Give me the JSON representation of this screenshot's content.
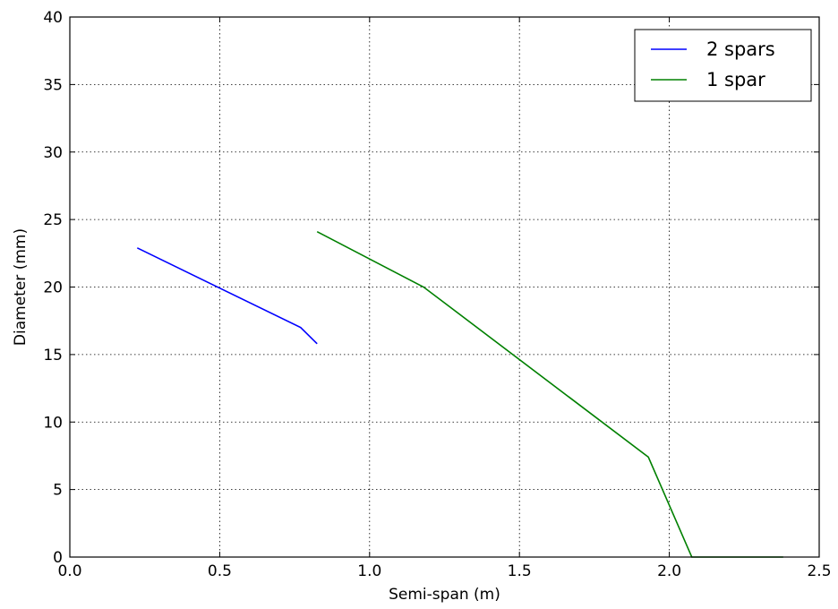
{
  "chart_data": {
    "type": "line",
    "title": "",
    "xlabel": "Semi-span (m)",
    "ylabel": "Diameter (mm)",
    "xlim": [
      0.0,
      2.5
    ],
    "ylim": [
      0,
      40
    ],
    "xticks": [
      0.0,
      0.5,
      1.0,
      1.5,
      2.0,
      2.5
    ],
    "xtick_labels": [
      "0.0",
      "0.5",
      "1.0",
      "1.5",
      "2.0",
      "2.5"
    ],
    "yticks": [
      0,
      5,
      10,
      15,
      20,
      25,
      30,
      35,
      40
    ],
    "ytick_labels": [
      "0",
      "5",
      "10",
      "15",
      "20",
      "25",
      "30",
      "35",
      "40"
    ],
    "grid": true,
    "legend_position": "top-right",
    "series": [
      {
        "name": "2 spars",
        "color": "#0000ff",
        "points": [
          [
            0.225,
            22.9
          ],
          [
            0.77,
            17.0
          ],
          [
            0.825,
            15.8
          ]
        ]
      },
      {
        "name": "1 spar",
        "color": "#008000",
        "points": [
          [
            0.825,
            24.1
          ],
          [
            1.18,
            20.0
          ],
          [
            1.93,
            7.4
          ],
          [
            2.075,
            0.0
          ],
          [
            2.38,
            0.0
          ]
        ]
      }
    ]
  }
}
